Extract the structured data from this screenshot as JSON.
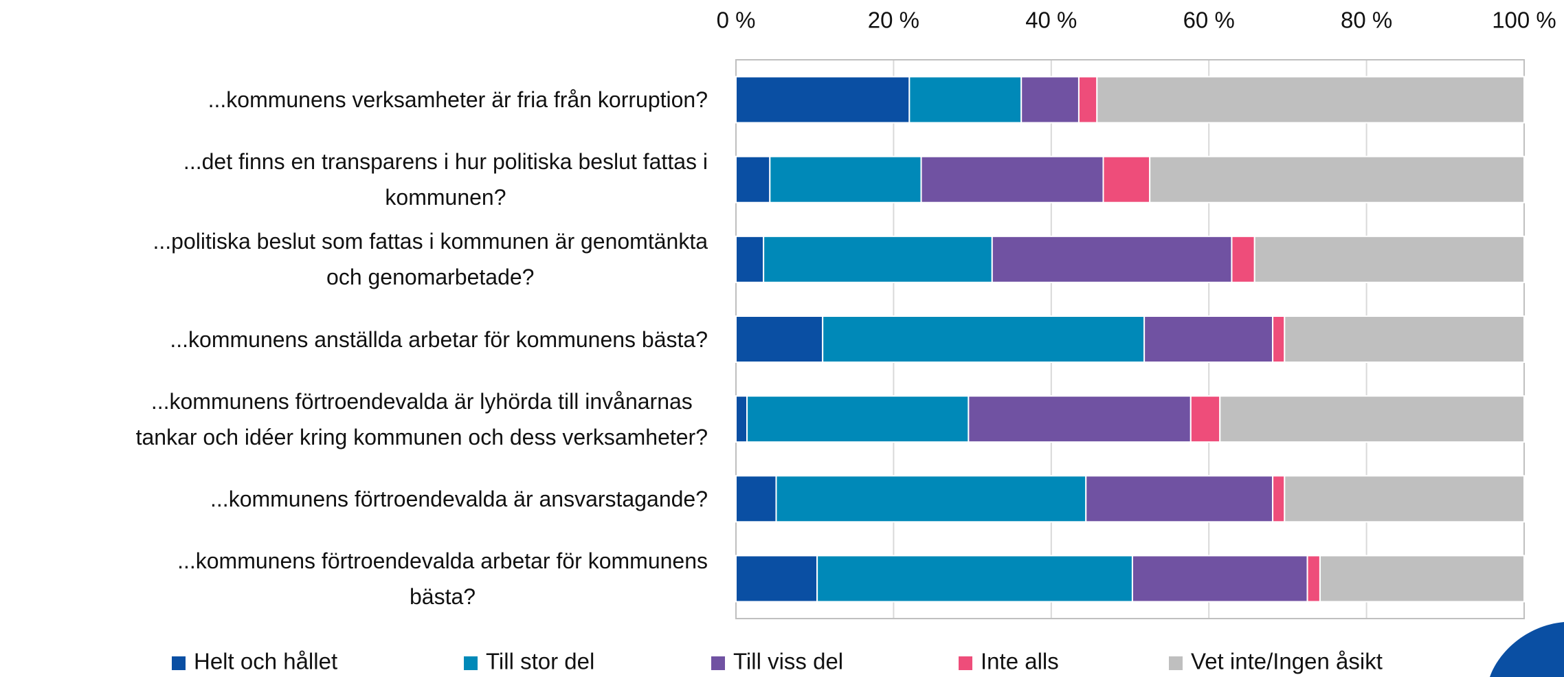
{
  "chart_data": {
    "type": "stacked-bar-horizontal",
    "categories": [
      "...kommunens verksamheter är fria från korruption?",
      "...det finns en transparens i hur politiska beslut fattas i\nkommunen?",
      "...politiska beslut som fattas i kommunen är genomtänkta\noch genomarbetade?",
      "...kommunens anställda arbetar för kommunens bästa?",
      "...kommunens förtroendevalda är lyhörda till invånarnas\ntankar och idéer kring kommunen och dess verksamheter?",
      "...kommunens förtroendevalda är ansvarstagande?",
      "...kommunens förtroendevalda arbetar för kommunens\nbästa?"
    ],
    "series": [
      {
        "name": "Helt och hållet",
        "color": "#0a4fa3",
        "values": [
          22.0,
          4.3,
          3.5,
          11.0,
          1.4,
          5.1,
          10.3
        ]
      },
      {
        "name": "Till stor del",
        "color": "#0089b8",
        "values": [
          14.2,
          19.2,
          29.0,
          40.8,
          28.1,
          39.3,
          40.0
        ]
      },
      {
        "name": "Till viss del",
        "color": "#7052a2",
        "values": [
          7.3,
          23.1,
          30.4,
          16.3,
          28.2,
          23.7,
          22.2
        ]
      },
      {
        "name": "Inte alls",
        "color": "#ee4d7a",
        "values": [
          2.3,
          5.9,
          2.9,
          1.5,
          3.7,
          1.5,
          1.6
        ]
      },
      {
        "name": "Vet inte/Ingen åsikt",
        "color": "#bfbfbf",
        "values": [
          54.2,
          47.5,
          34.2,
          30.4,
          38.6,
          30.4,
          25.9
        ]
      }
    ],
    "xlim": [
      0,
      100
    ],
    "xticks": [
      {
        "value": 0,
        "label": "0 %"
      },
      {
        "value": 20,
        "label": "20 %"
      },
      {
        "value": 40,
        "label": "40 %"
      },
      {
        "value": 60,
        "label": "60 %"
      },
      {
        "value": 80,
        "label": "80 %"
      },
      {
        "value": 100,
        "label": "100 %"
      }
    ],
    "grid": true,
    "legend": "bottom"
  }
}
